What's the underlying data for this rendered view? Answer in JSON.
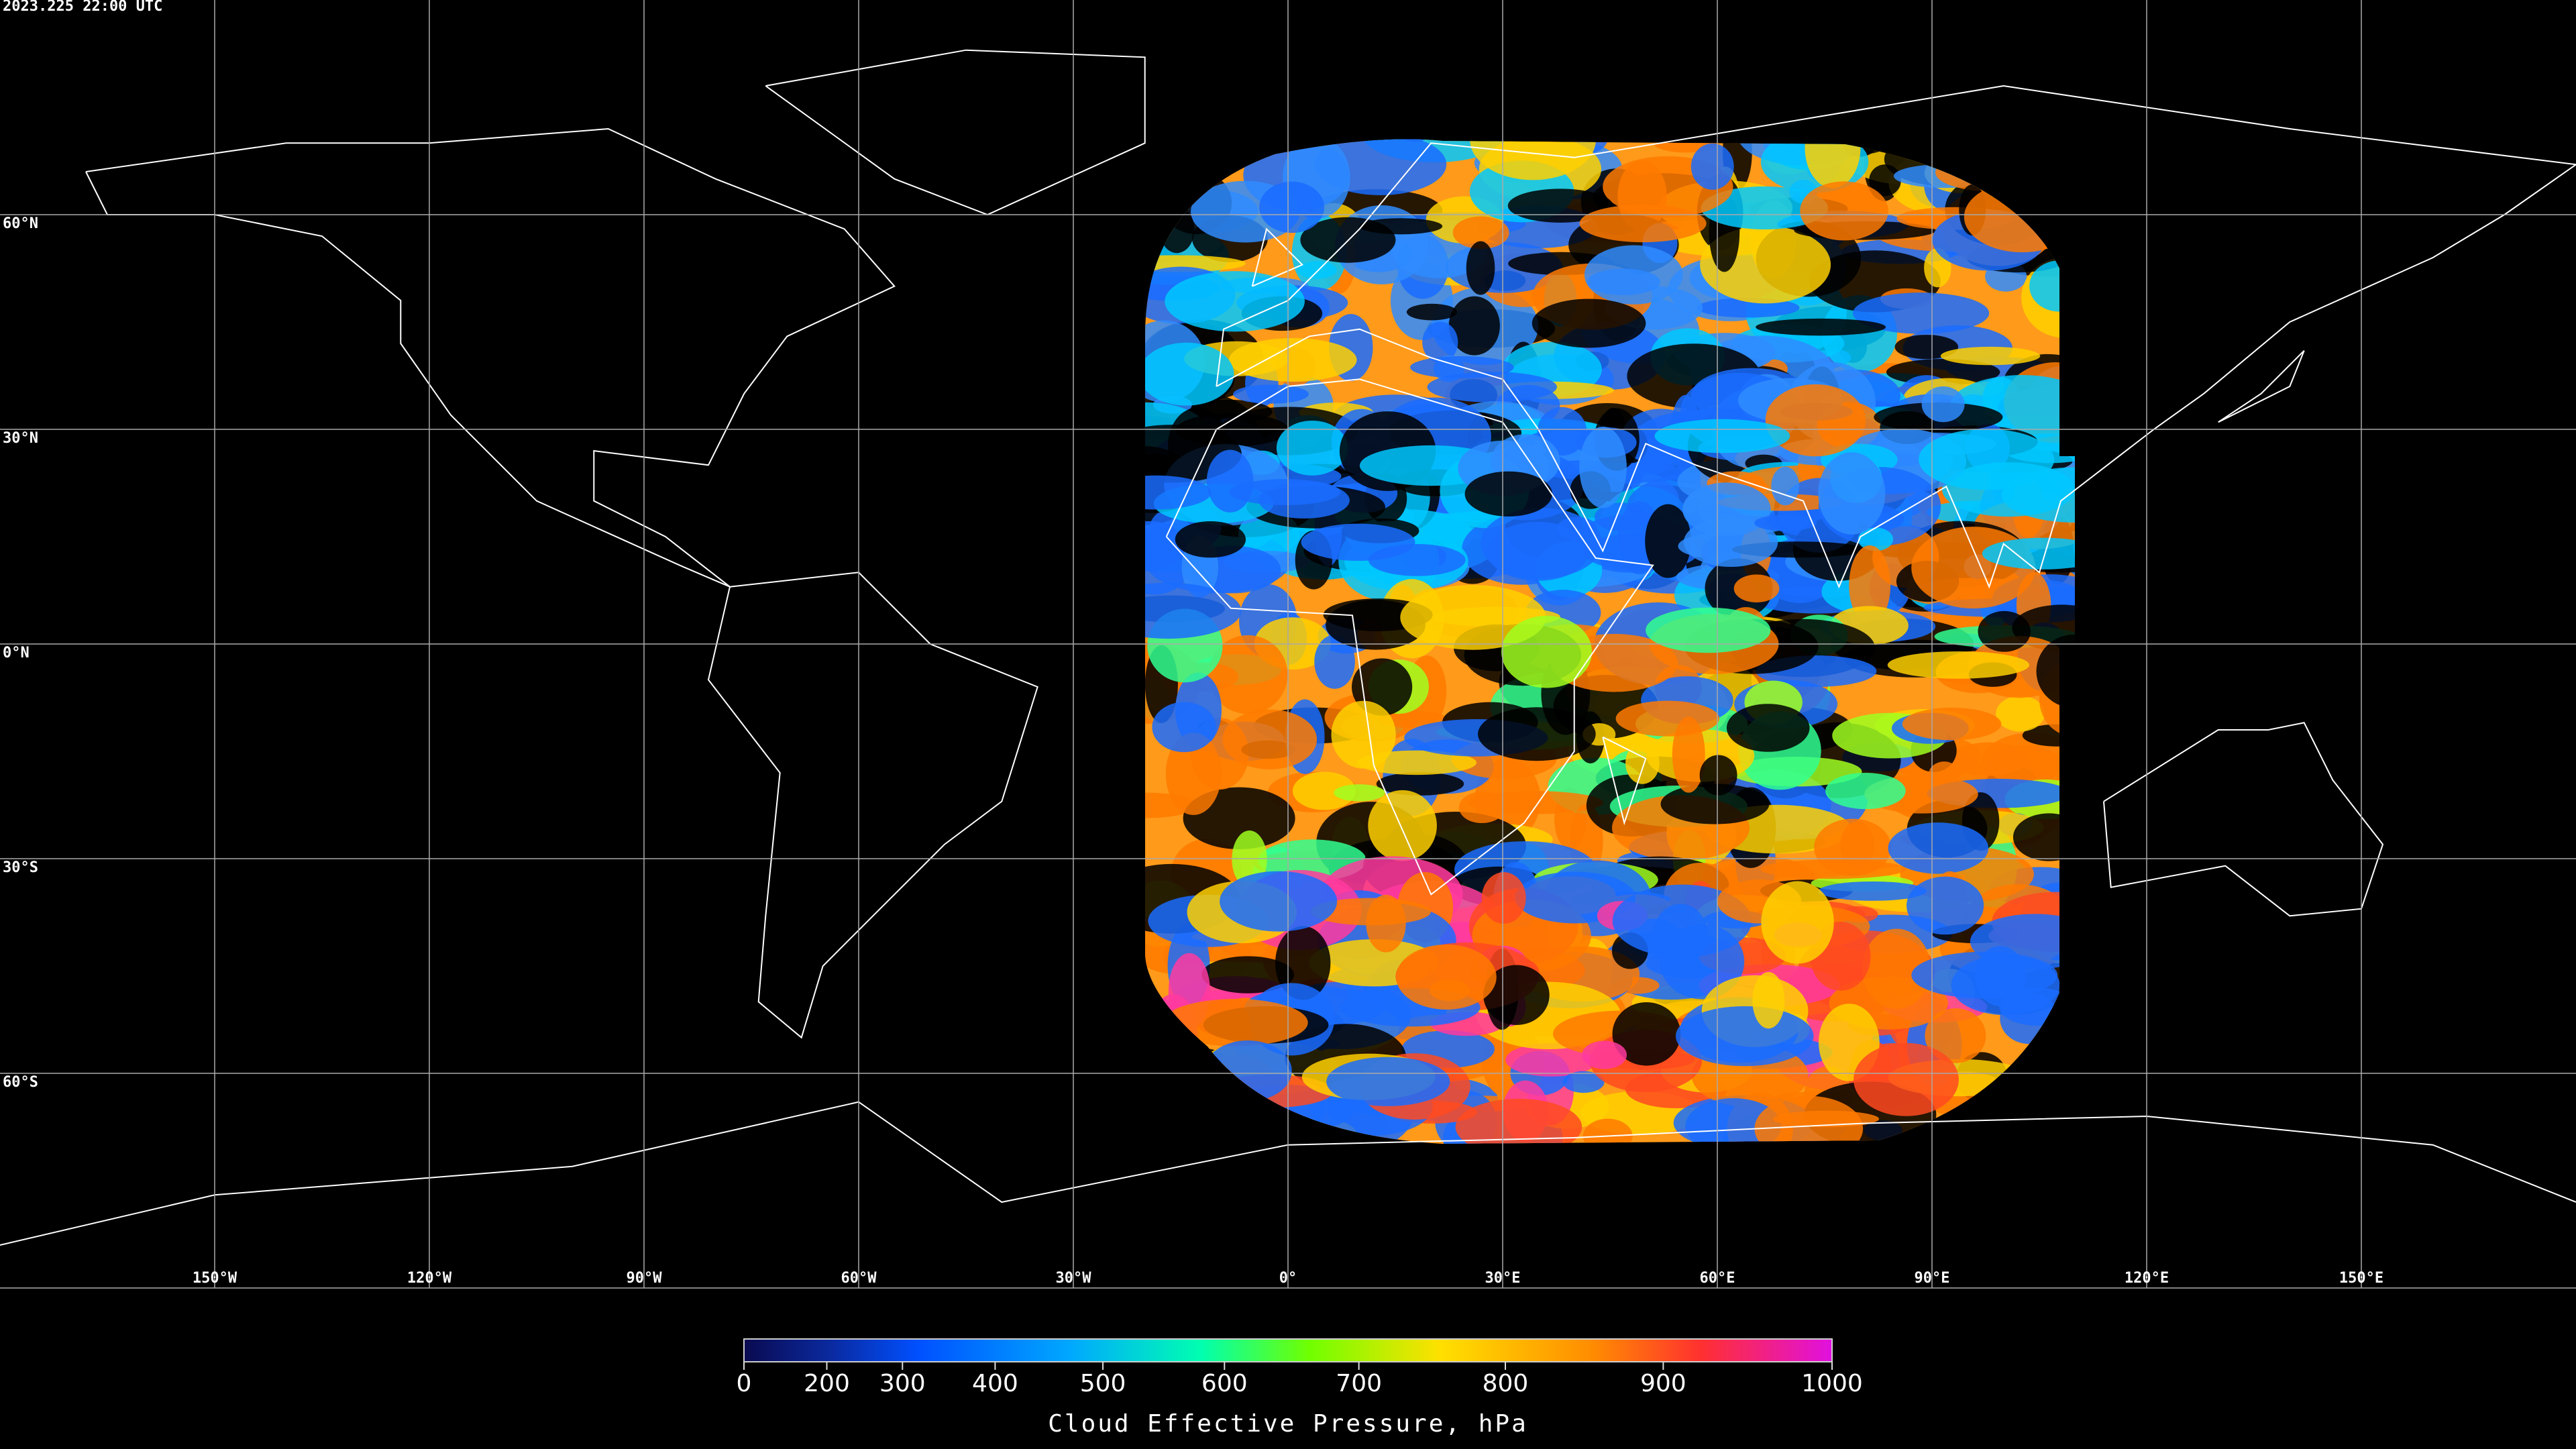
{
  "timestamp": "2023.225 22:00 UTC",
  "map": {
    "lon_ticks": [
      {
        "value": -150,
        "label": "150°W"
      },
      {
        "value": -120,
        "label": "120°W"
      },
      {
        "value": -90,
        "label": "90°W"
      },
      {
        "value": -60,
        "label": "60°W"
      },
      {
        "value": -30,
        "label": "30°W"
      },
      {
        "value": 0,
        "label": "0°"
      },
      {
        "value": 30,
        "label": "30°E"
      },
      {
        "value": 60,
        "label": "60°E"
      },
      {
        "value": 90,
        "label": "90°E"
      },
      {
        "value": 120,
        "label": "120°E"
      },
      {
        "value": 150,
        "label": "150°E"
      }
    ],
    "lat_ticks": [
      {
        "value": 60,
        "label": "60°N"
      },
      {
        "value": 30,
        "label": "30°N"
      },
      {
        "value": 0,
        "label": "0°N"
      },
      {
        "value": -30,
        "label": "30°S"
      },
      {
        "value": -60,
        "label": "60°S"
      }
    ]
  },
  "colorbar": {
    "title": "Cloud Effective Pressure, hPa",
    "range": [
      0,
      1000
    ],
    "ticks": [
      0,
      200,
      300,
      400,
      500,
      600,
      700,
      800,
      900,
      1000
    ]
  }
}
